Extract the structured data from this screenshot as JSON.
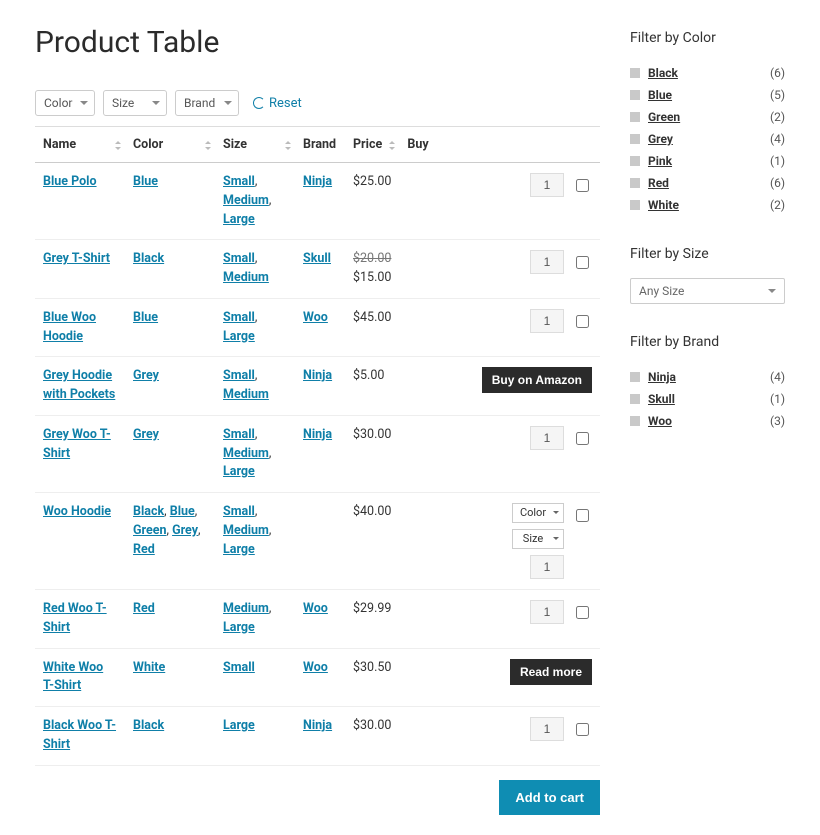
{
  "title": "Product Table",
  "filters": {
    "dropdowns": [
      {
        "label": "Color"
      },
      {
        "label": "Size"
      },
      {
        "label": "Brand"
      }
    ],
    "reset_label": "Reset"
  },
  "columns": {
    "name": "Name",
    "color": "Color",
    "size": "Size",
    "brand": "Brand",
    "price": "Price",
    "buy": "Buy"
  },
  "rows": [
    {
      "name": "Blue Polo",
      "colors": [
        "Blue"
      ],
      "sizes": [
        "Small",
        "Medium",
        "Large"
      ],
      "brand": "Ninja",
      "price": "$25.00",
      "buy": {
        "type": "qty",
        "qty": "1"
      }
    },
    {
      "name": "Grey T-Shirt",
      "colors": [
        "Black"
      ],
      "sizes": [
        "Small",
        "Medium"
      ],
      "brand": "Skull",
      "price_strike": "$20.00",
      "price": "$15.00",
      "buy": {
        "type": "qty",
        "qty": "1"
      }
    },
    {
      "name": "Blue Woo Hoodie",
      "colors": [
        "Blue"
      ],
      "sizes": [
        "Small",
        "Large"
      ],
      "brand": "Woo",
      "price": "$45.00",
      "buy": {
        "type": "qty",
        "qty": "1"
      }
    },
    {
      "name": "Grey Hoodie with Pockets",
      "colors": [
        "Grey"
      ],
      "sizes": [
        "Small",
        "Medium"
      ],
      "brand": "Ninja",
      "price": "$5.00",
      "buy": {
        "type": "button",
        "label": "Buy on Amazon"
      }
    },
    {
      "name": "Grey Woo T-Shirt",
      "colors": [
        "Grey"
      ],
      "sizes": [
        "Small",
        "Medium",
        "Large"
      ],
      "brand": "Ninja",
      "price": "$30.00",
      "buy": {
        "type": "qty",
        "qty": "1"
      }
    },
    {
      "name": "Woo Hoodie",
      "colors": [
        "Black",
        "Blue",
        "Green",
        "Grey",
        "Red"
      ],
      "sizes": [
        "Small",
        "Medium",
        "Large"
      ],
      "brand": "",
      "price": "$40.00",
      "buy": {
        "type": "variant",
        "color": "Color",
        "size": "Size",
        "qty": "1"
      }
    },
    {
      "name": "Red Woo T-Shirt",
      "colors": [
        "Red"
      ],
      "sizes": [
        "Medium",
        "Large"
      ],
      "brand": "Woo",
      "price": "$29.99",
      "buy": {
        "type": "qty",
        "qty": "1"
      }
    },
    {
      "name": "White Woo T-Shirt",
      "colors": [
        "White"
      ],
      "sizes": [
        "Small"
      ],
      "brand": "Woo",
      "price": "$30.50",
      "buy": {
        "type": "button",
        "label": "Read more"
      }
    },
    {
      "name": "Black Woo T-Shirt",
      "colors": [
        "Black"
      ],
      "sizes": [
        "Large"
      ],
      "brand": "Ninja",
      "price": "$30.00",
      "buy": {
        "type": "qty",
        "qty": "1"
      }
    }
  ],
  "add_to_cart": "Add to cart",
  "sidebar": {
    "color": {
      "title": "Filter by Color",
      "items": [
        {
          "label": "Black",
          "count": "(6)"
        },
        {
          "label": "Blue",
          "count": "(5)"
        },
        {
          "label": "Green",
          "count": "(2)"
        },
        {
          "label": "Grey",
          "count": "(4)"
        },
        {
          "label": "Pink",
          "count": "(1)"
        },
        {
          "label": "Red",
          "count": "(6)"
        },
        {
          "label": "White",
          "count": "(2)"
        }
      ]
    },
    "size": {
      "title": "Filter by Size",
      "placeholder": "Any Size"
    },
    "brand": {
      "title": "Filter by Brand",
      "items": [
        {
          "label": "Ninja",
          "count": "(4)"
        },
        {
          "label": "Skull",
          "count": "(1)"
        },
        {
          "label": "Woo",
          "count": "(3)"
        }
      ]
    }
  }
}
